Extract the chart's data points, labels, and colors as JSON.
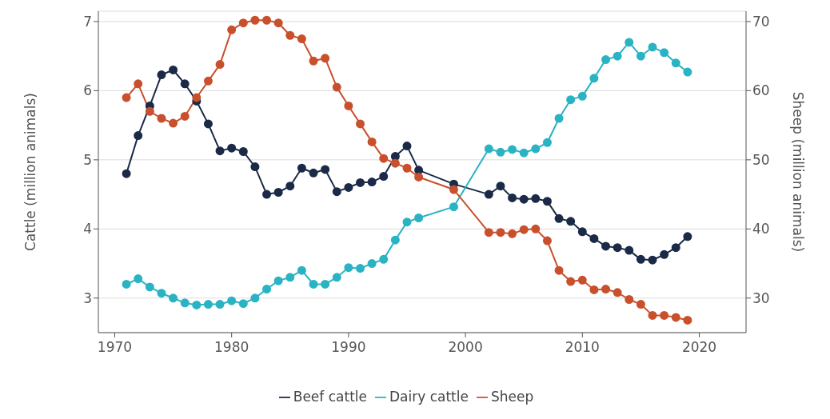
{
  "chart_data": {
    "type": "line",
    "ylabel": "Cattle (million animals)",
    "y2label": "Sheep (million animals)",
    "x": [
      1971,
      1972,
      1973,
      1974,
      1975,
      1976,
      1977,
      1978,
      1979,
      1980,
      1981,
      1982,
      1983,
      1984,
      1985,
      1986,
      1987,
      1988,
      1989,
      1990,
      1991,
      1992,
      1993,
      1994,
      1995,
      1996,
      1999,
      2002,
      2003,
      2004,
      2005,
      2006,
      2007,
      2008,
      2009,
      2010,
      2011,
      2012,
      2013,
      2014,
      2015,
      2016,
      2017,
      2018,
      2019
    ],
    "series": [
      {
        "name": "Beef cattle",
        "color": "#1b2a47",
        "values": [
          4.8,
          5.35,
          5.78,
          6.23,
          6.3,
          6.1,
          5.85,
          5.52,
          5.13,
          5.17,
          5.12,
          4.9,
          4.5,
          4.53,
          4.62,
          4.88,
          4.81,
          4.86,
          4.54,
          4.6,
          4.67,
          4.68,
          4.76,
          5.05,
          5.2,
          4.85,
          4.65,
          4.5,
          4.62,
          4.45,
          4.43,
          4.44,
          4.4,
          4.15,
          4.11,
          3.96,
          3.86,
          3.75,
          3.73,
          3.69,
          3.56,
          3.55,
          3.63,
          3.73,
          3.89
        ]
      },
      {
        "name": "Dairy cattle",
        "color": "#2ab3c3",
        "values": [
          3.2,
          3.28,
          3.16,
          3.07,
          3.0,
          2.93,
          2.9,
          2.91,
          2.91,
          2.96,
          2.92,
          3.0,
          3.13,
          3.25,
          3.3,
          3.4,
          3.2,
          3.2,
          3.3,
          3.44,
          3.43,
          3.5,
          3.56,
          3.84,
          4.1,
          4.16,
          4.32,
          5.16,
          5.11,
          5.15,
          5.1,
          5.16,
          5.25,
          5.6,
          5.87,
          5.92,
          6.18,
          6.45,
          6.5,
          6.7,
          6.5,
          6.63,
          6.55,
          6.4,
          6.27
        ]
      },
      {
        "name": "Sheep",
        "color": "#c9502c",
        "axis": "y2",
        "values": [
          59,
          61,
          57,
          56,
          55.3,
          56.3,
          59,
          61.4,
          63.8,
          68.8,
          69.8,
          70.2,
          70.2,
          69.8,
          68,
          67.5,
          64.3,
          64.7,
          60.5,
          57.8,
          55.2,
          52.6,
          50.2,
          49.5,
          48.8,
          47.5,
          45.7,
          39.5,
          39.5,
          39.3,
          39.9,
          40,
          38.3,
          34,
          32.4,
          32.6,
          31.2,
          31.3,
          30.8,
          29.8,
          29.1,
          27.5,
          27.5,
          27.2,
          26.8
        ]
      }
    ],
    "xlim": [
      1968.6,
      2024
    ],
    "xticks": [
      1970,
      1980,
      1990,
      2000,
      2010,
      2020
    ],
    "ylim": [
      2.5,
      7.15
    ],
    "yticks": [
      3,
      4,
      5,
      6,
      7
    ],
    "y2lim": [
      25,
      71.5
    ],
    "y2ticks": [
      30,
      40,
      50,
      60,
      70
    ],
    "grid": "y",
    "legend": "bottom",
    "marker": "circle",
    "line_style": "solid"
  }
}
